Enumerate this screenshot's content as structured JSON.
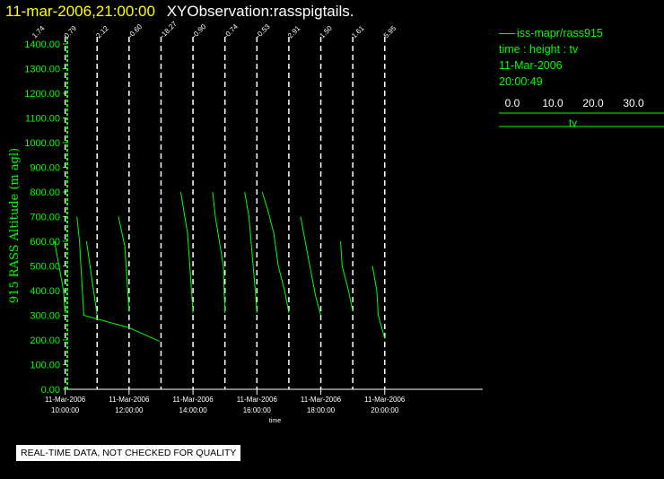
{
  "header": {
    "timestamp": "11-mar-2006,21:00:00",
    "observation": "XYObservation:rasspigtails."
  },
  "legend": {
    "series_name": "iss-mapr/rass915",
    "variables": "time : height : tv",
    "date": "11-Mar-2006",
    "time": "20:00:49",
    "scale_ticks": [
      "0.0",
      "10.0",
      "20.0",
      "30.0"
    ],
    "scale_range": [
      0,
      30
    ],
    "scale_label": "tv"
  },
  "notice": "REAL-TIME DATA, NOT CHECKED FOR QUALITY",
  "colors": {
    "data": "#00ff00",
    "title_time": "#ffff00",
    "axis": "#ffffff",
    "background": "#000000"
  },
  "chart_data": {
    "type": "line",
    "ylabel": "915 RASS Altitude (m agl)",
    "xlabel": "time",
    "ylim": [
      0,
      1400
    ],
    "yticks": [
      0,
      100,
      200,
      300,
      400,
      500,
      600,
      700,
      800,
      900,
      1000,
      1100,
      1200,
      1300,
      1400
    ],
    "ytick_labels": [
      "0.00",
      "100.00",
      "200.00",
      "300.00",
      "400.00",
      "500.00",
      "600.00",
      "700.00",
      "800.00",
      "900.00",
      "1000.00",
      "1100.00",
      "1200.00",
      "1300.00",
      "1400.00"
    ],
    "xlim": [
      "09:00",
      "22:00"
    ],
    "xticks": [
      "10:00",
      "12:00",
      "14:00",
      "16:00",
      "18:00",
      "20:00"
    ],
    "xtick_labels": [
      [
        "11-Mar-2006",
        "10:00:00"
      ],
      [
        "11-Mar-2006",
        "12:00:00"
      ],
      [
        "11-Mar-2006",
        "14:00:00"
      ],
      [
        "11-Mar-2006",
        "16:00:00"
      ],
      [
        "11-Mar-2006",
        "18:00:00"
      ],
      [
        "11-Mar-2006",
        "20:00:00"
      ]
    ],
    "profile_times": [
      "09:00",
      "10:00",
      "11:00",
      "12:00",
      "13:00",
      "14:00",
      "15:00",
      "16:00",
      "17:00",
      "18:00",
      "19:00",
      "20:00"
    ],
    "profile_values": [
      "1.74",
      "0.79",
      "2.12",
      "-0.60",
      "-18.27",
      "-0.90",
      "-0.74",
      "-0.53",
      "2.91",
      "1.50",
      "1.61",
      "5.95"
    ],
    "series": [
      {
        "points": [
          [
            "09:40",
            600
          ],
          [
            "09:57",
            400
          ],
          [
            "10:00",
            310
          ]
        ]
      },
      {
        "points": [
          [
            "10:22",
            700
          ],
          [
            "10:27",
            600
          ],
          [
            "10:35",
            300
          ],
          [
            "12:00",
            250
          ],
          [
            "12:57",
            195
          ]
        ]
      },
      {
        "points": [
          [
            "10:40",
            600
          ],
          [
            "10:52",
            420
          ],
          [
            "11:00",
            300
          ]
        ]
      },
      {
        "points": [
          [
            "11:40",
            700
          ],
          [
            "11:52",
            580
          ],
          [
            "12:00",
            315
          ]
        ]
      },
      {
        "points": [
          [
            "13:37",
            800
          ],
          [
            "13:50",
            630
          ],
          [
            "14:00",
            310
          ]
        ]
      },
      {
        "points": [
          [
            "14:37",
            800
          ],
          [
            "14:42",
            700
          ],
          [
            "14:57",
            500
          ],
          [
            "15:00",
            310
          ]
        ]
      },
      {
        "points": [
          [
            "15:37",
            800
          ],
          [
            "15:45",
            700
          ],
          [
            "15:57",
            400
          ],
          [
            "16:00",
            310
          ]
        ]
      },
      {
        "points": [
          [
            "16:10",
            800
          ],
          [
            "16:20",
            730
          ],
          [
            "16:32",
            630
          ],
          [
            "16:40",
            500
          ],
          [
            "16:52",
            400
          ],
          [
            "17:00",
            310
          ]
        ]
      },
      {
        "points": [
          [
            "17:22",
            700
          ],
          [
            "17:35",
            550
          ],
          [
            "17:50",
            380
          ],
          [
            "18:00",
            300
          ]
        ]
      },
      {
        "points": [
          [
            "18:37",
            600
          ],
          [
            "18:40",
            500
          ],
          [
            "18:52",
            400
          ],
          [
            "19:00",
            315
          ]
        ]
      },
      {
        "points": [
          [
            "19:37",
            500
          ],
          [
            "19:45",
            400
          ],
          [
            "19:48",
            300
          ],
          [
            "20:00",
            205
          ]
        ]
      }
    ]
  }
}
